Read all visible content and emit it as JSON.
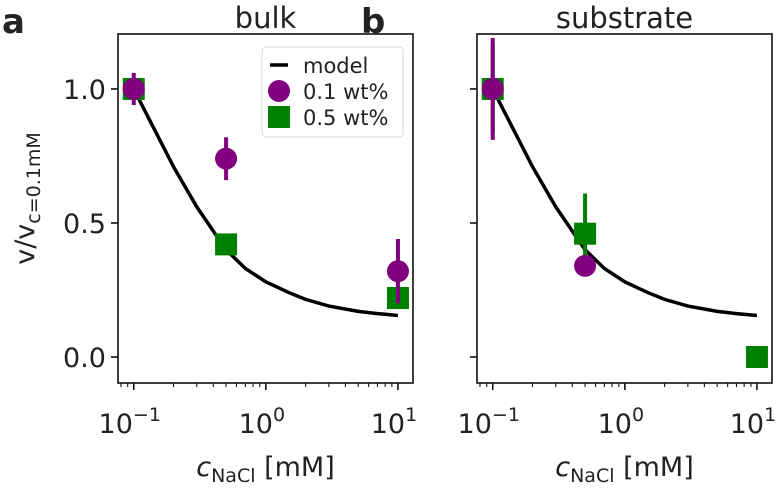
{
  "chart_data": [
    {
      "type": "scatter",
      "panel_label": "a",
      "title": "bulk",
      "xlabel_main": "c",
      "xlabel_sub": "NaCl",
      "xlabel_unit": " [mM]",
      "ylabel_main": "v/v",
      "ylabel_sub": "c=0.1mM",
      "xscale": "log",
      "xlim": [
        0.076,
        13.0
      ],
      "ylim": [
        -0.097,
        1.205
      ],
      "xticks": [
        {
          "value": 0.1,
          "base": "10",
          "exp": "−1"
        },
        {
          "value": 1,
          "base": "10",
          "exp": "0"
        },
        {
          "value": 10,
          "base": "10",
          "exp": "1"
        }
      ],
      "yticks": [
        {
          "value": 0.0,
          "label": "0.0"
        },
        {
          "value": 0.5,
          "label": "0.5"
        },
        {
          "value": 1.0,
          "label": "1.0"
        }
      ],
      "show_ytick_labels": true,
      "legend": {
        "placement": "top-right",
        "entries": [
          "model",
          "0.1 wt%",
          "0.5 wt%"
        ]
      },
      "model": {
        "name": "model",
        "color": "#000000",
        "x": [
          0.1,
          0.15,
          0.2,
          0.3,
          0.5,
          0.7,
          1,
          1.5,
          2,
          3,
          5,
          7,
          10
        ],
        "y": [
          1.0,
          0.83,
          0.71,
          0.56,
          0.4,
          0.33,
          0.28,
          0.24,
          0.215,
          0.19,
          0.17,
          0.162,
          0.155
        ]
      },
      "series": [
        {
          "name": "0.5 wt%",
          "marker": "square",
          "color": "#008000",
          "x": [
            0.1,
            0.5,
            10
          ],
          "y": [
            1.0,
            0.42,
            0.22
          ],
          "err": [
            0.0,
            0.0,
            0.0
          ]
        },
        {
          "name": "0.1 wt%",
          "marker": "circle",
          "color": "#800080",
          "x": [
            0.1,
            0.5,
            10
          ],
          "y": [
            1.0,
            0.74,
            0.32
          ],
          "err": [
            0.06,
            0.08,
            0.12
          ]
        }
      ]
    },
    {
      "type": "scatter",
      "panel_label": "b",
      "title": "substrate",
      "xlabel_main": "c",
      "xlabel_sub": "NaCl",
      "xlabel_unit": " [mM]",
      "xscale": "log",
      "xlim": [
        0.076,
        13.0
      ],
      "ylim": [
        -0.097,
        1.205
      ],
      "xticks": [
        {
          "value": 0.1,
          "base": "10",
          "exp": "−1"
        },
        {
          "value": 1,
          "base": "10",
          "exp": "0"
        },
        {
          "value": 10,
          "base": "10",
          "exp": "1"
        }
      ],
      "yticks": [
        {
          "value": 0.0
        },
        {
          "value": 0.5
        },
        {
          "value": 1.0
        }
      ],
      "show_ytick_labels": false,
      "model": {
        "name": "model",
        "color": "#000000",
        "x": [
          0.1,
          0.15,
          0.2,
          0.3,
          0.5,
          0.7,
          1,
          1.5,
          2,
          3,
          5,
          7,
          10
        ],
        "y": [
          1.0,
          0.83,
          0.71,
          0.56,
          0.4,
          0.33,
          0.28,
          0.24,
          0.215,
          0.19,
          0.17,
          0.162,
          0.155
        ]
      },
      "series": [
        {
          "name": "0.5 wt%",
          "marker": "square",
          "color": "#008000",
          "x": [
            0.1,
            0.5,
            10
          ],
          "y": [
            1.0,
            0.46,
            0.0
          ],
          "err": [
            0.165,
            0.15,
            0.0
          ]
        },
        {
          "name": "0.1 wt%",
          "marker": "circle",
          "color": "#800080",
          "x": [
            0.1,
            0.5
          ],
          "y": [
            1.0,
            0.34
          ],
          "err": [
            0.19,
            0.03
          ]
        }
      ]
    }
  ]
}
